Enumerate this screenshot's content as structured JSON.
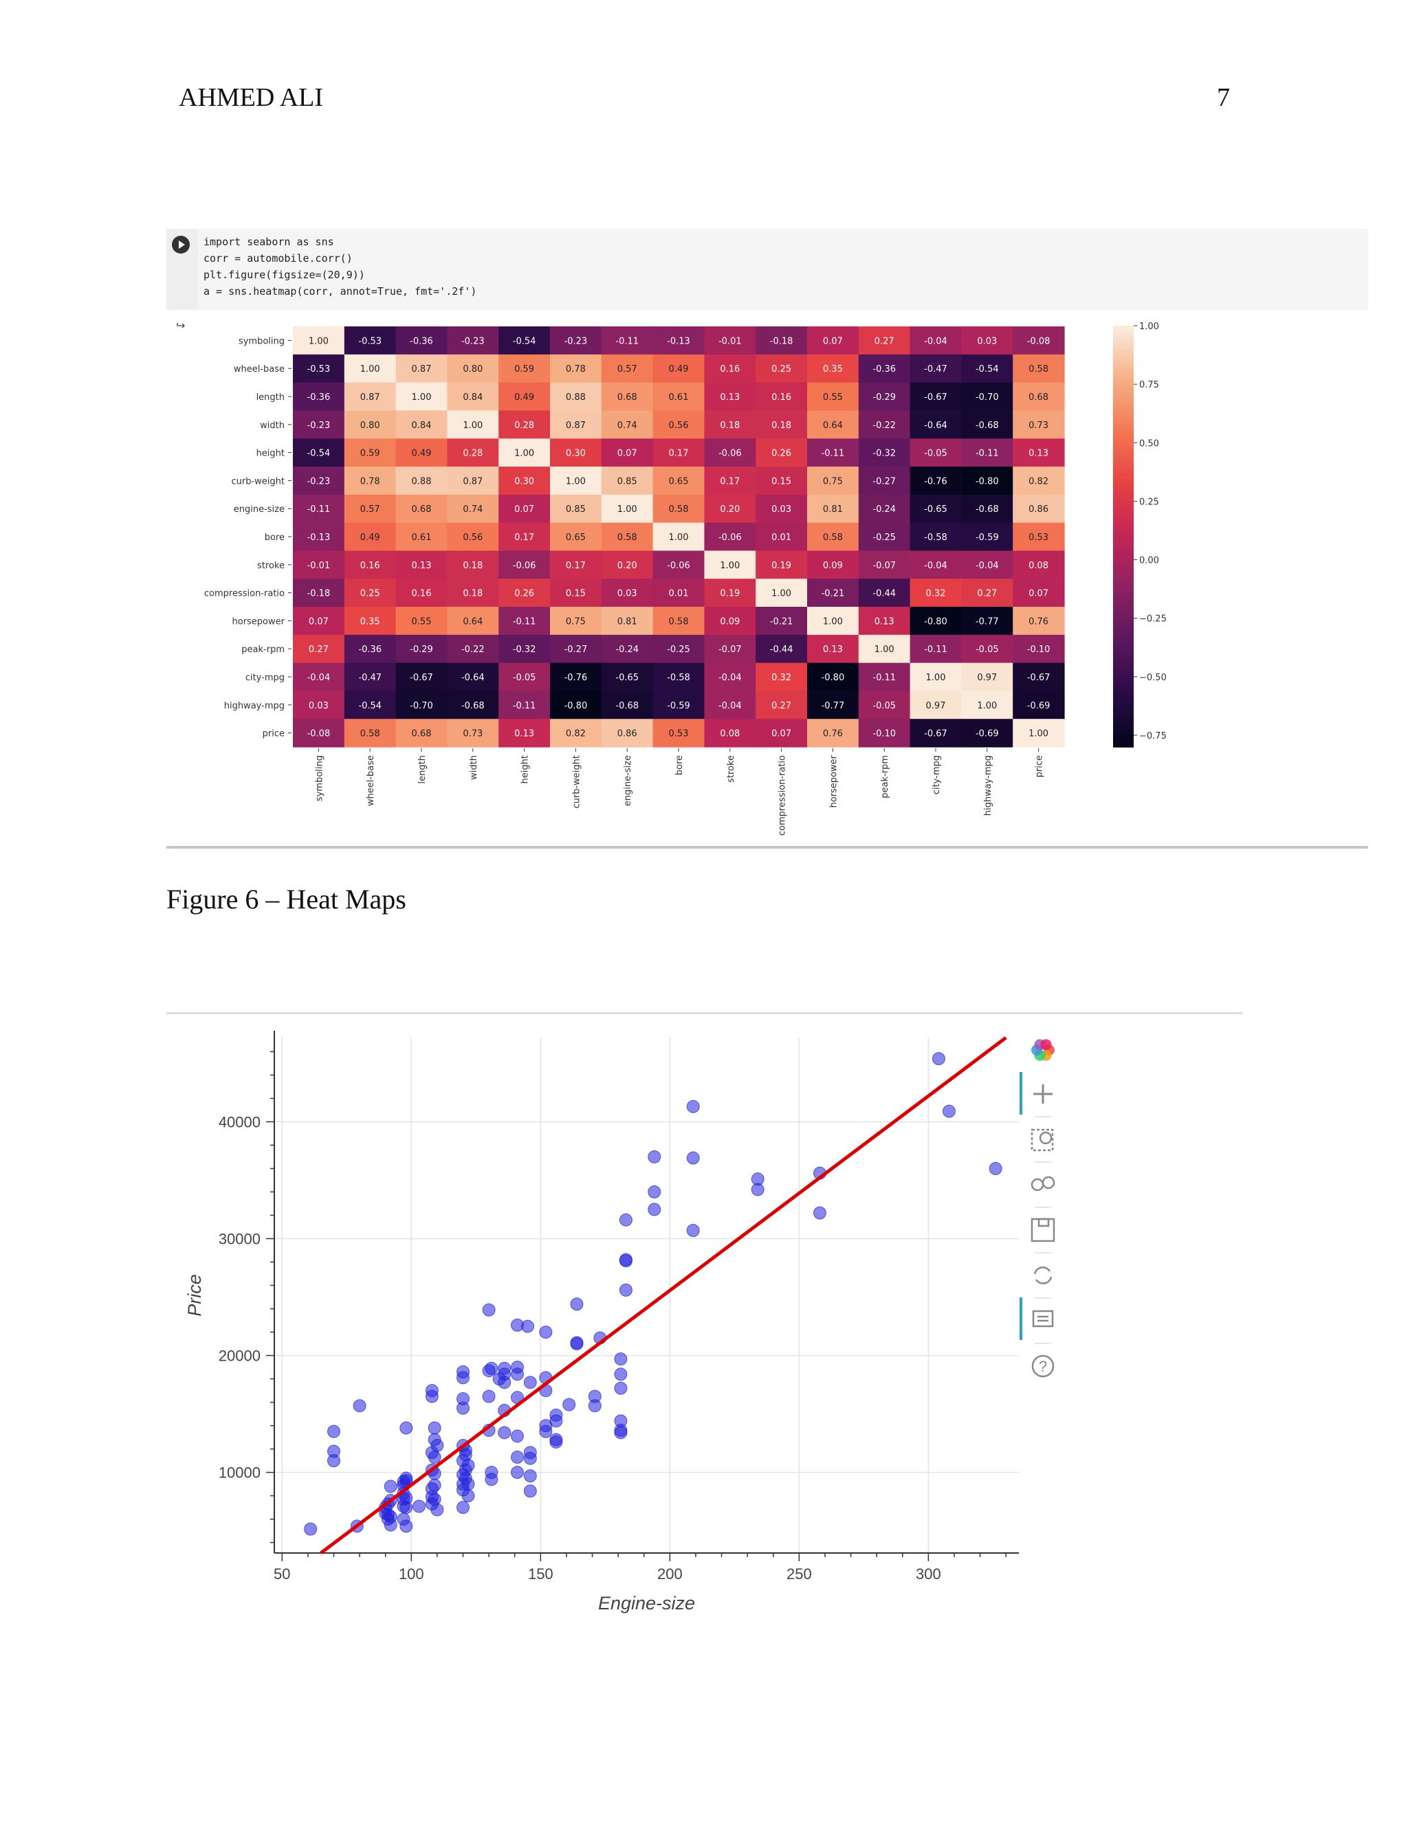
{
  "header": {
    "author": "AHMED ALI",
    "page_number": "7"
  },
  "code_cell": {
    "lines": [
      "import seaborn as sns",
      "corr = automobile.corr()",
      "plt.figure(figsize=(20,9))",
      "a = sns.heatmap(corr, annot=True, fmt='.2f')"
    ]
  },
  "figure6_caption": "Figure 6 – Heat Maps",
  "colors": {
    "regression_line": "#dd0000",
    "points": "#2222dd"
  },
  "chart_data": [
    {
      "type": "heatmap",
      "labels": [
        "symboling",
        "wheel-base",
        "length",
        "width",
        "height",
        "curb-weight",
        "engine-size",
        "bore",
        "stroke",
        "compression-ratio",
        "horsepower",
        "peak-rpm",
        "city-mpg",
        "highway-mpg",
        "price"
      ],
      "matrix": [
        [
          1.0,
          -0.53,
          -0.36,
          -0.23,
          -0.54,
          -0.23,
          -0.11,
          -0.13,
          -0.01,
          -0.18,
          0.07,
          0.27,
          -0.04,
          0.03,
          -0.08
        ],
        [
          -0.53,
          1.0,
          0.87,
          0.8,
          0.59,
          0.78,
          0.57,
          0.49,
          0.16,
          0.25,
          0.35,
          -0.36,
          -0.47,
          -0.54,
          0.58
        ],
        [
          -0.36,
          0.87,
          1.0,
          0.84,
          0.49,
          0.88,
          0.68,
          0.61,
          0.13,
          0.16,
          0.55,
          -0.29,
          -0.67,
          -0.7,
          0.68
        ],
        [
          -0.23,
          0.8,
          0.84,
          1.0,
          0.28,
          0.87,
          0.74,
          0.56,
          0.18,
          0.18,
          0.64,
          -0.22,
          -0.64,
          -0.68,
          0.73
        ],
        [
          -0.54,
          0.59,
          0.49,
          0.28,
          1.0,
          0.3,
          0.07,
          0.17,
          -0.06,
          0.26,
          -0.11,
          -0.32,
          -0.05,
          -0.11,
          0.13
        ],
        [
          -0.23,
          0.78,
          0.88,
          0.87,
          0.3,
          1.0,
          0.85,
          0.65,
          0.17,
          0.15,
          0.75,
          -0.27,
          -0.76,
          -0.8,
          0.82
        ],
        [
          -0.11,
          0.57,
          0.68,
          0.74,
          0.07,
          0.85,
          1.0,
          0.58,
          0.2,
          0.03,
          0.81,
          -0.24,
          -0.65,
          -0.68,
          0.86
        ],
        [
          -0.13,
          0.49,
          0.61,
          0.56,
          0.17,
          0.65,
          0.58,
          1.0,
          -0.06,
          0.01,
          0.58,
          -0.25,
          -0.58,
          -0.59,
          0.53
        ],
        [
          -0.01,
          0.16,
          0.13,
          0.18,
          -0.06,
          0.17,
          0.2,
          -0.06,
          1.0,
          0.19,
          0.09,
          -0.07,
          -0.04,
          -0.04,
          0.08
        ],
        [
          -0.18,
          0.25,
          0.16,
          0.18,
          0.26,
          0.15,
          0.03,
          0.01,
          0.19,
          1.0,
          -0.21,
          -0.44,
          0.32,
          0.27,
          0.07
        ],
        [
          0.07,
          0.35,
          0.55,
          0.64,
          -0.11,
          0.75,
          0.81,
          0.58,
          0.09,
          -0.21,
          1.0,
          0.13,
          -0.8,
          -0.77,
          0.76
        ],
        [
          0.27,
          -0.36,
          -0.29,
          -0.22,
          -0.32,
          -0.27,
          -0.24,
          -0.25,
          -0.07,
          -0.44,
          0.13,
          1.0,
          -0.11,
          -0.05,
          -0.1
        ],
        [
          -0.04,
          -0.47,
          -0.67,
          -0.64,
          -0.05,
          -0.76,
          -0.65,
          -0.58,
          -0.04,
          0.32,
          -0.8,
          -0.11,
          1.0,
          0.97,
          -0.67
        ],
        [
          0.03,
          -0.54,
          -0.7,
          -0.68,
          -0.11,
          -0.8,
          -0.68,
          -0.59,
          -0.04,
          0.27,
          -0.77,
          -0.05,
          0.97,
          1.0,
          -0.69
        ],
        [
          -0.08,
          0.58,
          0.68,
          0.73,
          0.13,
          0.82,
          0.86,
          0.53,
          0.08,
          0.07,
          0.76,
          -0.1,
          -0.67,
          -0.69,
          1.0
        ]
      ],
      "colorbar_ticks": [
        "1.00",
        "0.75",
        "0.50",
        "0.25",
        "0.00",
        "−0.25",
        "−0.50",
        "−0.75"
      ],
      "colorbar_values": [
        1.0,
        0.75,
        0.5,
        0.25,
        0.0,
        -0.25,
        -0.5,
        -0.75
      ],
      "vmin": -0.8,
      "vmax": 1.0
    },
    {
      "type": "scatter",
      "xlabel": "Engine-size",
      "ylabel": "Price",
      "xlim": [
        47,
        335
      ],
      "ylim": [
        3100,
        47200
      ],
      "xticks": [
        50,
        100,
        150,
        200,
        250,
        300
      ],
      "xtick_labels": [
        "50",
        "100",
        "150",
        "200",
        "250",
        "300"
      ],
      "yticks": [
        10000,
        20000,
        30000,
        40000
      ],
      "ytick_labels": [
        "10000",
        "20000",
        "30000",
        "40000"
      ],
      "grid": true,
      "regression_line": [
        [
          65,
          3100
        ],
        [
          330,
          47200
        ]
      ],
      "points": [
        [
          61,
          5150
        ],
        [
          70,
          13500
        ],
        [
          70,
          11800
        ],
        [
          70,
          11000
        ],
        [
          80,
          15700
        ],
        [
          79,
          5400
        ],
        [
          90,
          6500
        ],
        [
          90,
          7000
        ],
        [
          91,
          6000
        ],
        [
          91,
          6400
        ],
        [
          91,
          7300
        ],
        [
          92,
          5500
        ],
        [
          92,
          6200
        ],
        [
          92,
          7600
        ],
        [
          92,
          8800
        ],
        [
          97,
          7100
        ],
        [
          97,
          7700
        ],
        [
          97,
          8200
        ],
        [
          97,
          8900
        ],
        [
          97,
          9200
        ],
        [
          97,
          6000
        ],
        [
          98,
          7000
        ],
        [
          98,
          7800
        ],
        [
          98,
          9300
        ],
        [
          98,
          9500
        ],
        [
          98,
          5400
        ],
        [
          98,
          13800
        ],
        [
          103,
          7100
        ],
        [
          108,
          7300
        ],
        [
          108,
          7900
        ],
        [
          108,
          8600
        ],
        [
          108,
          10200
        ],
        [
          108,
          11700
        ],
        [
          108,
          16500
        ],
        [
          108,
          17000
        ],
        [
          109,
          7700
        ],
        [
          109,
          8900
        ],
        [
          109,
          9900
        ],
        [
          109,
          11300
        ],
        [
          109,
          12800
        ],
        [
          109,
          13800
        ],
        [
          110,
          6800
        ],
        [
          110,
          12300
        ],
        [
          120,
          7000
        ],
        [
          120,
          8500
        ],
        [
          120,
          9000
        ],
        [
          120,
          9800
        ],
        [
          120,
          11000
        ],
        [
          120,
          12300
        ],
        [
          120,
          15500
        ],
        [
          120,
          16300
        ],
        [
          120,
          18100
        ],
        [
          120,
          18600
        ],
        [
          121,
          9500
        ],
        [
          121,
          10200
        ],
        [
          121,
          11500
        ],
        [
          121,
          11900
        ],
        [
          122,
          8000
        ],
        [
          122,
          9000
        ],
        [
          122,
          10600
        ],
        [
          130,
          23900
        ],
        [
          131,
          9400
        ],
        [
          131,
          10000
        ],
        [
          130,
          13600
        ],
        [
          130,
          16500
        ],
        [
          130,
          18700
        ],
        [
          131,
          18900
        ],
        [
          134,
          18000
        ],
        [
          136,
          18400
        ],
        [
          136,
          15300
        ],
        [
          136,
          13400
        ],
        [
          136,
          17700
        ],
        [
          136,
          18900
        ],
        [
          141,
          13100
        ],
        [
          141,
          16400
        ],
        [
          141,
          18400
        ],
        [
          141,
          19000
        ],
        [
          141,
          22600
        ],
        [
          141,
          10000
        ],
        [
          141,
          11300
        ],
        [
          146,
          8400
        ],
        [
          146,
          9700
        ],
        [
          146,
          11200
        ],
        [
          146,
          11700
        ],
        [
          146,
          17700
        ],
        [
          145,
          22500
        ],
        [
          152,
          13500
        ],
        [
          152,
          14000
        ],
        [
          152,
          17000
        ],
        [
          152,
          18100
        ],
        [
          152,
          22000
        ],
        [
          156,
          12600
        ],
        [
          156,
          12800
        ],
        [
          156,
          14400
        ],
        [
          156,
          14900
        ],
        [
          161,
          15800
        ],
        [
          164,
          24400
        ],
        [
          164,
          21000
        ],
        [
          164,
          21100
        ],
        [
          171,
          15700
        ],
        [
          171,
          16500
        ],
        [
          173,
          21500
        ],
        [
          181,
          13400
        ],
        [
          181,
          13600
        ],
        [
          181,
          14400
        ],
        [
          181,
          17200
        ],
        [
          181,
          18400
        ],
        [
          181,
          19700
        ],
        [
          183,
          25600
        ],
        [
          183,
          28100
        ],
        [
          183,
          28200
        ],
        [
          183,
          31600
        ],
        [
          194,
          32500
        ],
        [
          194,
          34000
        ],
        [
          194,
          37000
        ],
        [
          209,
          30700
        ],
        [
          209,
          36900
        ],
        [
          209,
          41300
        ],
        [
          234,
          34200
        ],
        [
          234,
          35100
        ],
        [
          258,
          32200
        ],
        [
          258,
          35600
        ],
        [
          304,
          45400
        ],
        [
          308,
          40900
        ],
        [
          326,
          36000
        ]
      ]
    }
  ]
}
